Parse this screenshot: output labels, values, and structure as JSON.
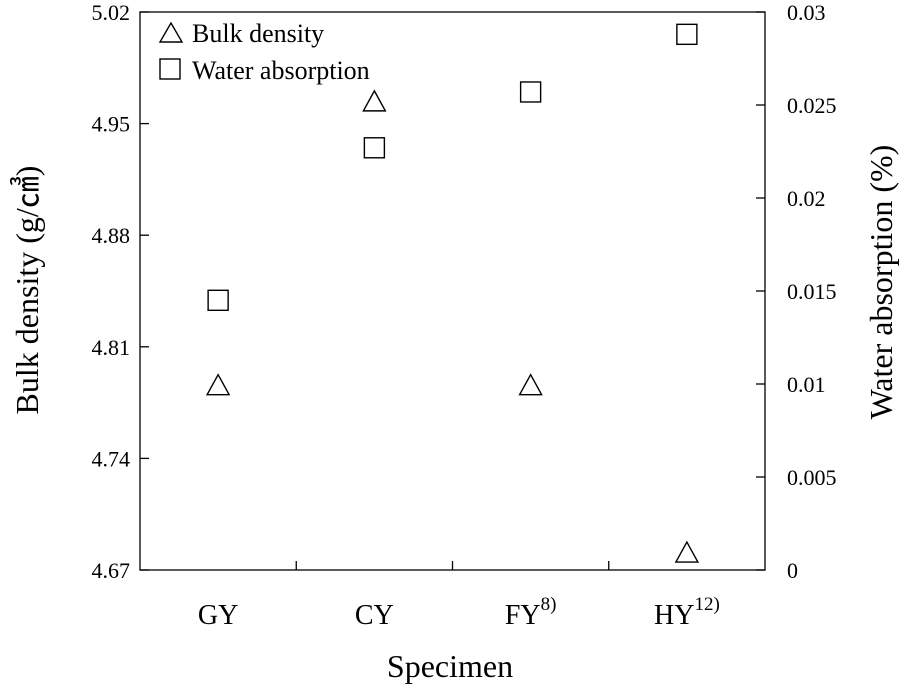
{
  "chart_data": {
    "type": "scatter",
    "title": "",
    "xlabel": "Specimen",
    "categories": [
      {
        "label": "GY",
        "sup": ""
      },
      {
        "label": "CY",
        "sup": ""
      },
      {
        "label": "FY",
        "sup": "8)"
      },
      {
        "label": "HY",
        "sup": "12)"
      }
    ],
    "y_left": {
      "label_main": "Bulk density (g/",
      "label_unit": "㎤",
      "label_close": ")",
      "lim": [
        4.67,
        5.02
      ],
      "ticks": [
        "4.67",
        "4.74",
        "4.81",
        "4.88",
        "4.95",
        "5.02"
      ]
    },
    "y_right": {
      "label": "Water absorption (%)",
      "lim": [
        0,
        0.03
      ],
      "ticks": [
        "0",
        "0.005",
        "0.01",
        "0.015",
        "0.02",
        "0.025",
        "0.03"
      ]
    },
    "series": [
      {
        "name": "Bulk density",
        "marker": "triangle",
        "axis": "left",
        "values": [
          4.785,
          4.963,
          4.785,
          4.68
        ]
      },
      {
        "name": "Water absorption",
        "marker": "square",
        "axis": "right",
        "values": [
          0.0145,
          0.0227,
          0.0257,
          0.0288
        ]
      }
    ],
    "legend_position": "top-left",
    "grid": false
  }
}
